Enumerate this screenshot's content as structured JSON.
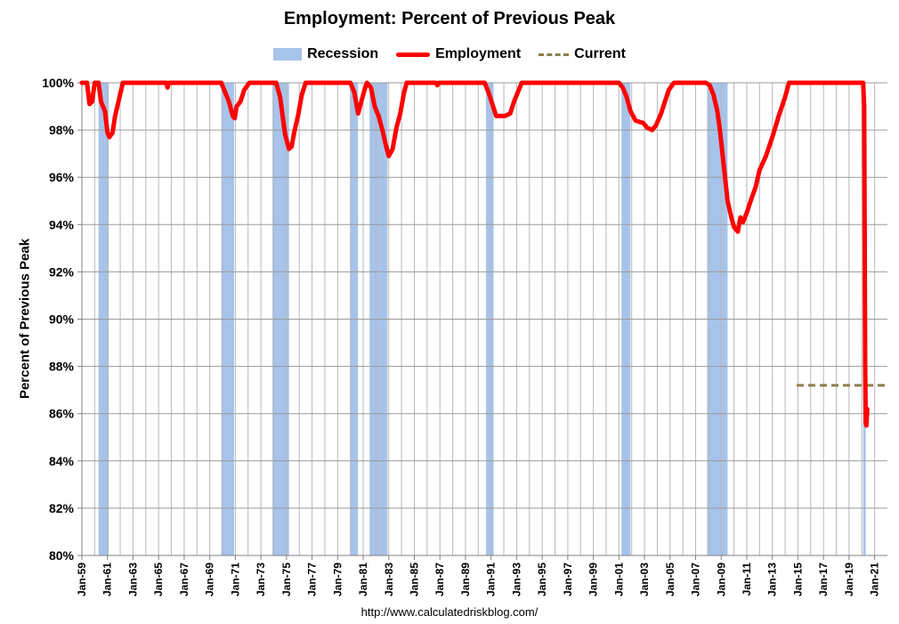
{
  "chart_data": {
    "type": "line",
    "title": "Employment: Percent of Previous Peak",
    "ylabel": "Percent of Previous Peak",
    "xlabel": "",
    "source": "http://www.calculatedriskblog.com/",
    "ylim": [
      80,
      100
    ],
    "xlim": [
      1959.0,
      2022.0
    ],
    "grid": true,
    "legend_position": "top-center",
    "y_ticks": [
      "80%",
      "82%",
      "84%",
      "86%",
      "88%",
      "90%",
      "92%",
      "94%",
      "96%",
      "98%",
      "100%"
    ],
    "x_ticks": [
      "Jan-59",
      "Jan-61",
      "Jan-63",
      "Jan-65",
      "Jan-67",
      "Jan-69",
      "Jan-71",
      "Jan-73",
      "Jan-75",
      "Jan-77",
      "Jan-79",
      "Jan-81",
      "Jan-83",
      "Jan-85",
      "Jan-87",
      "Jan-89",
      "Jan-91",
      "Jan-93",
      "Jan-95",
      "Jan-97",
      "Jan-99",
      "Jan-01",
      "Jan-03",
      "Jan-05",
      "Jan-07",
      "Jan-09",
      "Jan-11",
      "Jan-13",
      "Jan-15",
      "Jan-17",
      "Jan-19",
      "Jan-21"
    ],
    "legend": [
      {
        "name": "Recession",
        "color": "#A7C3EA",
        "style": "area"
      },
      {
        "name": "Employment",
        "color": "#ff0000",
        "style": "solid"
      },
      {
        "name": "Current",
        "color": "#8C7F4A",
        "style": "dashed"
      }
    ],
    "recessions": [
      [
        1960.3,
        1961.1
      ],
      [
        1969.9,
        1970.9
      ],
      [
        1973.9,
        1975.2
      ],
      [
        1980.0,
        1980.6
      ],
      [
        1981.5,
        1982.9
      ],
      [
        1990.6,
        1991.2
      ],
      [
        2001.2,
        2001.9
      ],
      [
        2007.9,
        2009.5
      ],
      [
        2020.1,
        2020.3
      ]
    ],
    "series": [
      {
        "name": "Employment",
        "color": "#ff0000",
        "points": [
          [
            1959.0,
            100
          ],
          [
            1959.4,
            100
          ],
          [
            1959.6,
            99.1
          ],
          [
            1959.8,
            99.2
          ],
          [
            1960.0,
            100
          ],
          [
            1960.3,
            100
          ],
          [
            1960.5,
            99.2
          ],
          [
            1960.8,
            98.8
          ],
          [
            1961.0,
            97.9
          ],
          [
            1961.15,
            97.7
          ],
          [
            1961.4,
            97.9
          ],
          [
            1961.6,
            98.6
          ],
          [
            1961.9,
            99.3
          ],
          [
            1962.2,
            100
          ],
          [
            1965.6,
            100
          ],
          [
            1965.7,
            99.8
          ],
          [
            1965.8,
            100
          ],
          [
            1969.9,
            100
          ],
          [
            1970.2,
            99.6
          ],
          [
            1970.5,
            99.2
          ],
          [
            1970.8,
            98.6
          ],
          [
            1970.95,
            98.5
          ],
          [
            1971.1,
            99.0
          ],
          [
            1971.4,
            99.2
          ],
          [
            1971.7,
            99.7
          ],
          [
            1972.1,
            100
          ],
          [
            1974.2,
            100
          ],
          [
            1974.5,
            99.4
          ],
          [
            1974.7,
            98.6
          ],
          [
            1974.9,
            97.8
          ],
          [
            1975.2,
            97.2
          ],
          [
            1975.4,
            97.3
          ],
          [
            1975.6,
            97.9
          ],
          [
            1975.9,
            98.6
          ],
          [
            1976.2,
            99.5
          ],
          [
            1976.5,
            100
          ],
          [
            1980.0,
            100
          ],
          [
            1980.3,
            99.6
          ],
          [
            1980.6,
            98.7
          ],
          [
            1980.8,
            99.1
          ],
          [
            1981.1,
            99.7
          ],
          [
            1981.3,
            100
          ],
          [
            1981.6,
            99.8
          ],
          [
            1981.9,
            99.0
          ],
          [
            1982.2,
            98.6
          ],
          [
            1982.5,
            98.0
          ],
          [
            1982.8,
            97.3
          ],
          [
            1983.0,
            96.9
          ],
          [
            1983.3,
            97.2
          ],
          [
            1983.6,
            98.1
          ],
          [
            1983.9,
            98.7
          ],
          [
            1984.2,
            99.6
          ],
          [
            1984.4,
            100
          ],
          [
            1986.7,
            100
          ],
          [
            1986.8,
            99.9
          ],
          [
            1986.9,
            100
          ],
          [
            1990.5,
            100
          ],
          [
            1990.8,
            99.6
          ],
          [
            1991.1,
            99.1
          ],
          [
            1991.4,
            98.6
          ],
          [
            1992.1,
            98.6
          ],
          [
            1992.5,
            98.7
          ],
          [
            1992.8,
            99.2
          ],
          [
            1993.1,
            99.6
          ],
          [
            1993.4,
            100
          ],
          [
            2001.0,
            100
          ],
          [
            2001.3,
            99.8
          ],
          [
            2001.6,
            99.4
          ],
          [
            2001.9,
            98.8
          ],
          [
            2002.3,
            98.4
          ],
          [
            2002.9,
            98.3
          ],
          [
            2003.2,
            98.1
          ],
          [
            2003.6,
            98.0
          ],
          [
            2003.9,
            98.2
          ],
          [
            2004.3,
            98.7
          ],
          [
            2004.6,
            99.2
          ],
          [
            2004.9,
            99.7
          ],
          [
            2005.3,
            100
          ],
          [
            2007.8,
            100
          ],
          [
            2008.1,
            99.9
          ],
          [
            2008.4,
            99.5
          ],
          [
            2008.7,
            98.8
          ],
          [
            2008.9,
            98.0
          ],
          [
            2009.1,
            97.0
          ],
          [
            2009.3,
            96.0
          ],
          [
            2009.5,
            95.0
          ],
          [
            2009.8,
            94.3
          ],
          [
            2010.0,
            93.9
          ],
          [
            2010.3,
            93.7
          ],
          [
            2010.5,
            94.3
          ],
          [
            2010.7,
            94.1
          ],
          [
            2011.0,
            94.5
          ],
          [
            2011.3,
            95.0
          ],
          [
            2011.7,
            95.6
          ],
          [
            2012.0,
            96.3
          ],
          [
            2012.5,
            96.9
          ],
          [
            2013.0,
            97.7
          ],
          [
            2013.5,
            98.6
          ],
          [
            2014.0,
            99.4
          ],
          [
            2014.3,
            100
          ],
          [
            2020.1,
            100
          ],
          [
            2020.18,
            99.0
          ],
          [
            2020.22,
            94.0
          ],
          [
            2020.26,
            88.0
          ],
          [
            2020.3,
            85.6
          ],
          [
            2020.36,
            85.5
          ],
          [
            2020.42,
            86.2
          ]
        ]
      },
      {
        "name": "Current",
        "color": "#8C7F4A",
        "style": "dashed",
        "x": [
          2014.9,
          2022.0
        ],
        "y": 87.2
      }
    ]
  }
}
